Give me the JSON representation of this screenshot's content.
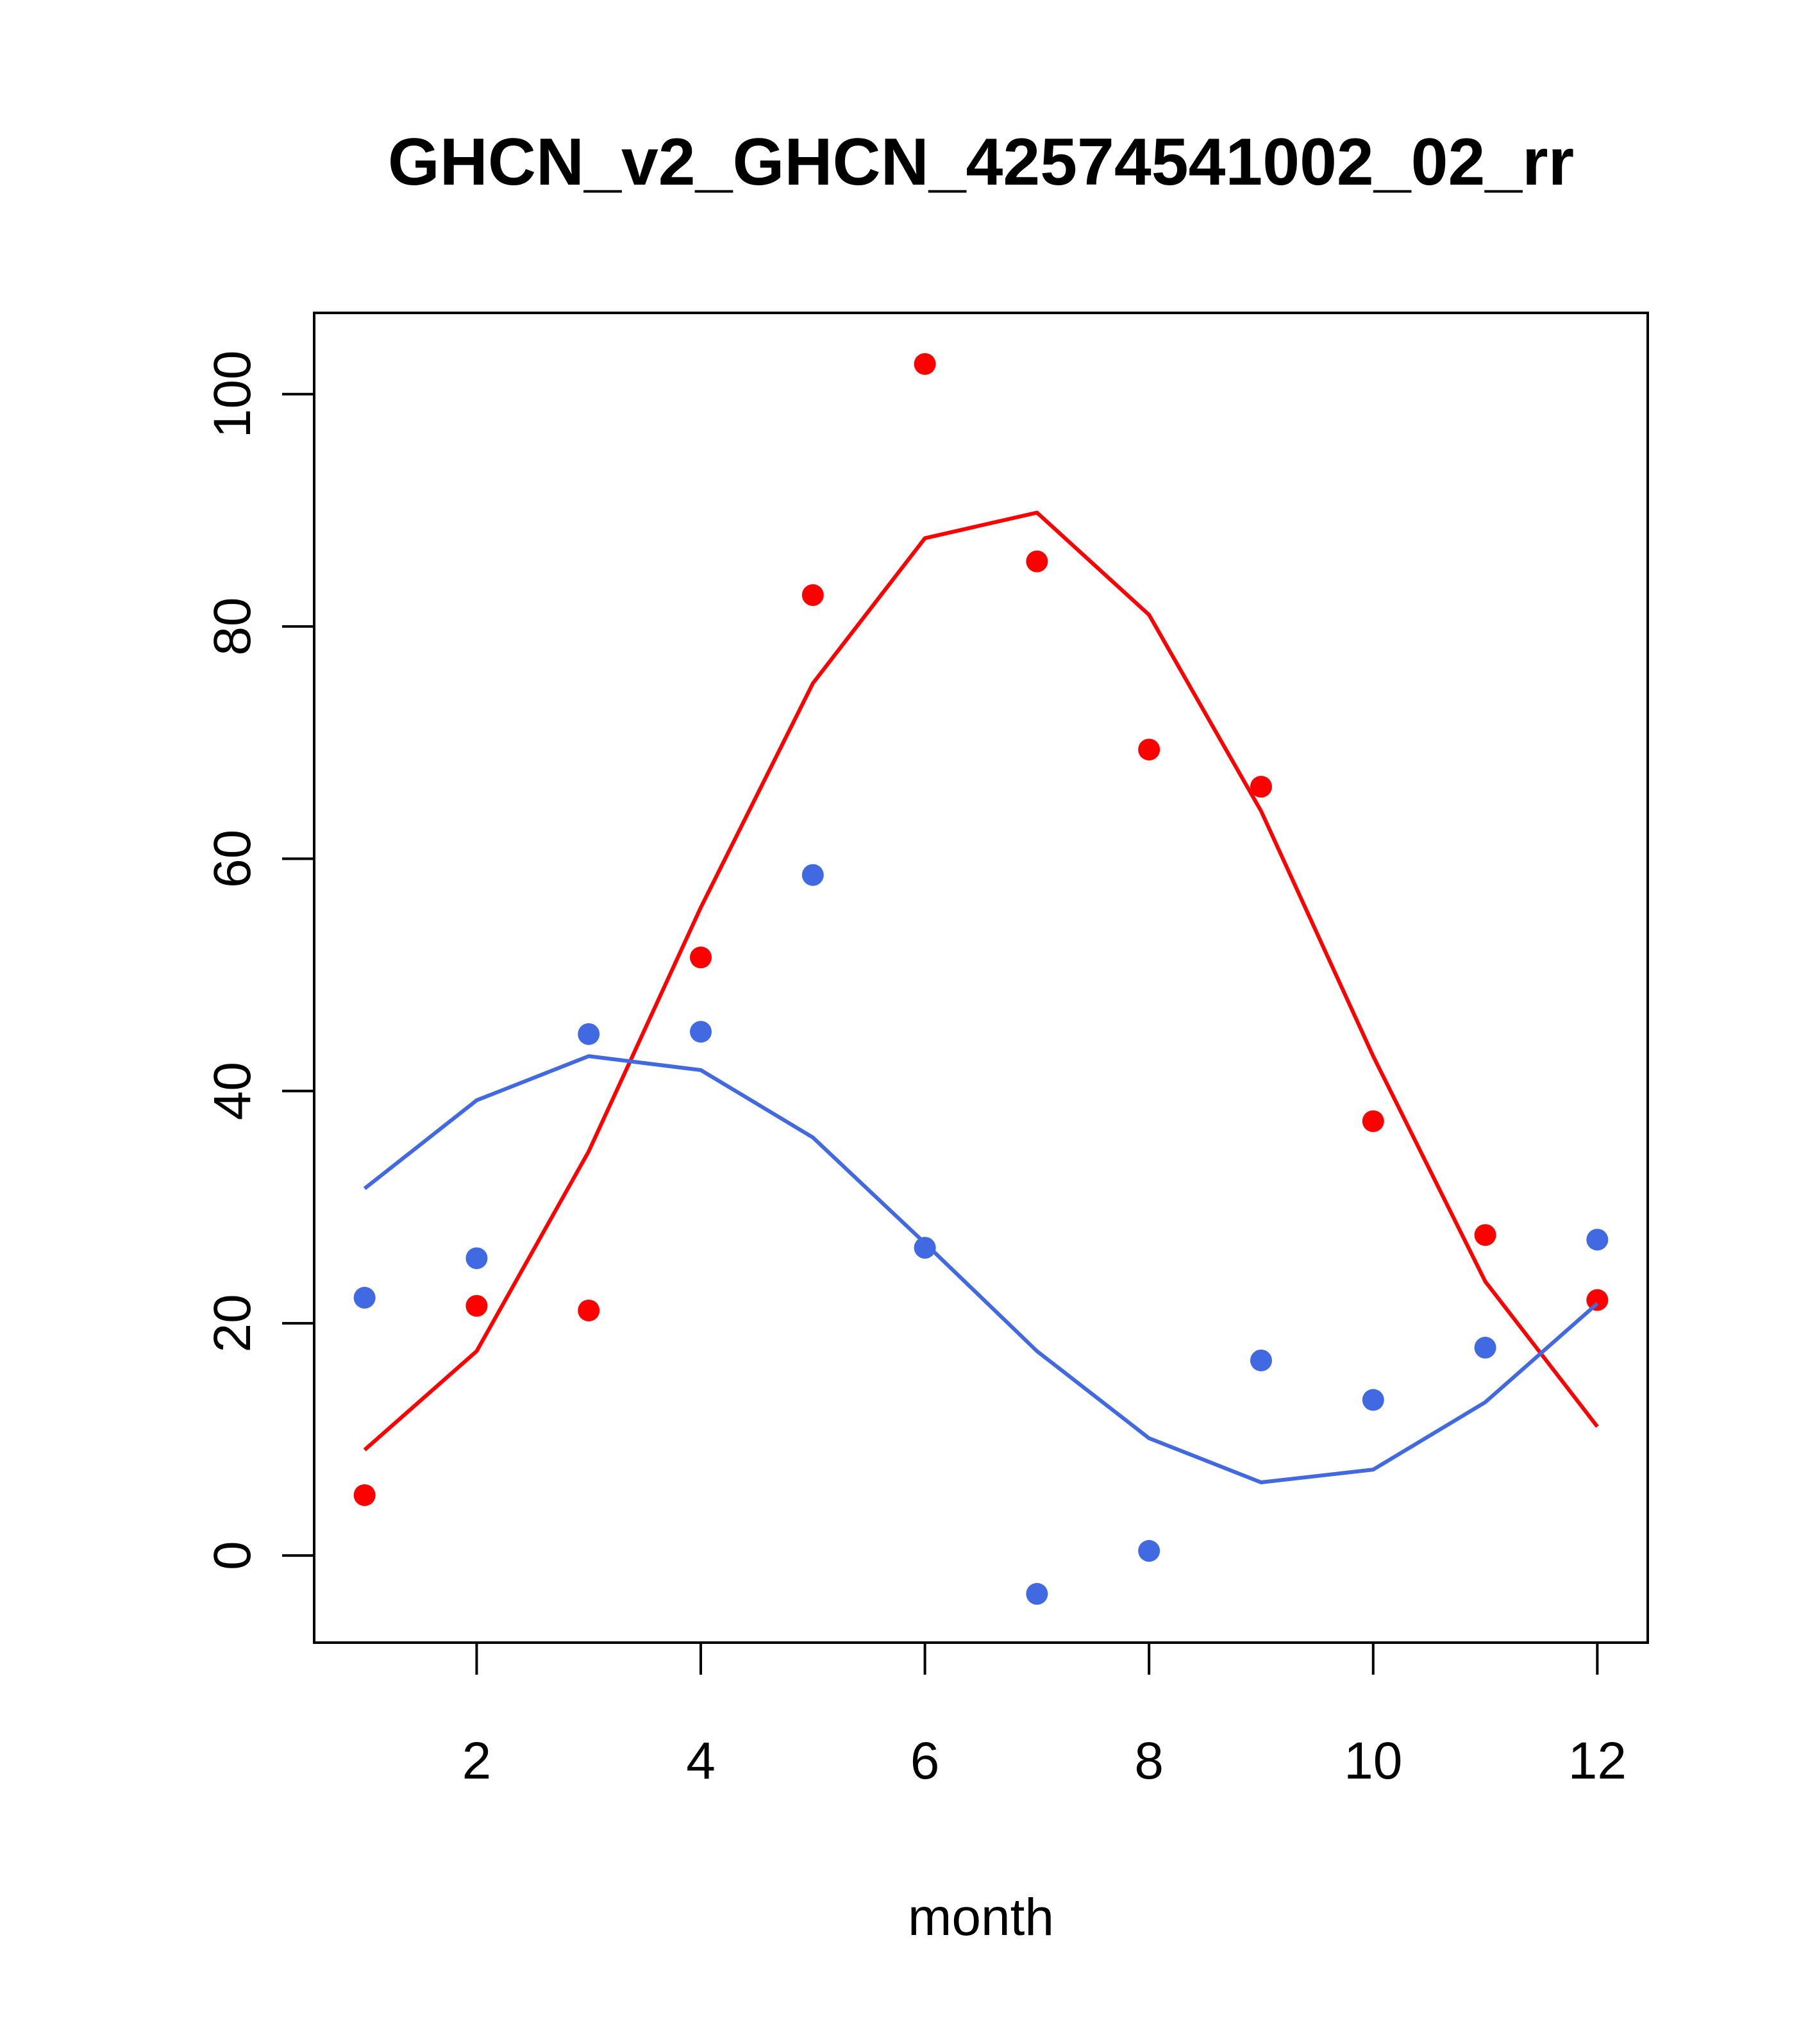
{
  "chart_data": {
    "type": "scatter",
    "title": "GHCN_v2_GHCN_42574541002_02_rr",
    "xlabel": "month",
    "ylabel": "",
    "xlim": [
      0.55,
      12.45
    ],
    "ylim": [
      -7.5,
      107
    ],
    "x_ticks": [
      2,
      4,
      6,
      8,
      10,
      12
    ],
    "y_ticks": [
      0,
      20,
      40,
      60,
      80,
      100
    ],
    "grid": false,
    "legend": "none",
    "series": [
      {
        "color": "#ff0000",
        "points": {
          "x": [
            1,
            2,
            3,
            4,
            5,
            6,
            7,
            8,
            9,
            10,
            11,
            12
          ],
          "y": [
            5.2,
            21.5,
            21.1,
            51.5,
            82.7,
            102.6,
            85.6,
            69.4,
            66.2,
            37.4,
            27.6,
            22.0
          ]
        },
        "line": {
          "x": [
            1,
            2,
            3,
            4,
            5,
            6,
            7,
            8,
            9,
            10,
            11,
            12
          ],
          "y": [
            9.1,
            17.6,
            34.8,
            55.8,
            75.1,
            87.6,
            89.8,
            81.0,
            64.1,
            43.0,
            23.6,
            11.1
          ]
        }
      },
      {
        "color": "#4169e1",
        "points": {
          "x": [
            1,
            2,
            3,
            4,
            5,
            6,
            7,
            8,
            9,
            10,
            11,
            12
          ],
          "y": [
            22.2,
            25.6,
            44.9,
            45.1,
            58.6,
            26.5,
            -3.3,
            0.4,
            16.8,
            13.4,
            17.9,
            27.2
          ]
        },
        "line": {
          "x": [
            1,
            2,
            3,
            4,
            5,
            6,
            7,
            8,
            9,
            10,
            11,
            12
          ],
          "y": [
            31.6,
            39.2,
            43.0,
            41.8,
            36.0,
            26.9,
            17.6,
            10.1,
            6.3,
            7.4,
            13.2,
            21.7
          ]
        }
      }
    ]
  }
}
